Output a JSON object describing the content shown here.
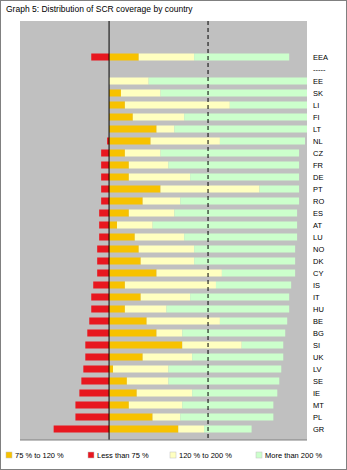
{
  "chart_data": {
    "type": "bar",
    "title": "Graph 5: Distribution of SCR coverage by country",
    "orientation": "horizontal",
    "stacked": true,
    "grid": true,
    "tick_labels": false,
    "legend": "bottom",
    "xlim": [
      -45,
      100
    ],
    "xticks": [
      50
    ],
    "categories": [
      "EEA",
      "-----",
      "EE",
      "SK",
      "LI",
      "FI",
      "LT",
      "NL",
      "CZ",
      "FR",
      "DE",
      "PT",
      "RO",
      "ES",
      "AT",
      "LU",
      "NO",
      "DK",
      "CY",
      "IS",
      "IT",
      "HU",
      "BE",
      "BG",
      "SI",
      "UK",
      "LV",
      "SE",
      "IE",
      "MT",
      "PL",
      "GR"
    ],
    "series": [
      {
        "name": "75 % to 120 %",
        "color": "#f7c200",
        "values": [
          15,
          null,
          0,
          6,
          8,
          12,
          24,
          21,
          8,
          10,
          10,
          26,
          17,
          10,
          4,
          13,
          15,
          16,
          24,
          8,
          16,
          8,
          19,
          24,
          37,
          17,
          2,
          9,
          14,
          10,
          22,
          35
        ]
      },
      {
        "name": "Less than 75 %",
        "color": "#e8171f",
        "values": [
          -9,
          null,
          0,
          0,
          0,
          0,
          0,
          -1,
          -4,
          -4,
          -4,
          -4,
          -4,
          -5,
          -5,
          -5,
          -6,
          -6,
          -6,
          -8,
          -9,
          -9,
          -10,
          -11,
          -12,
          -12,
          -13,
          -14,
          -15,
          -17,
          -17,
          -28
        ]
      },
      {
        "name": "120 % to 200 %",
        "color": "#ffffc0",
        "values": [
          28,
          null,
          20,
          20,
          53,
          26,
          9,
          35,
          18,
          20,
          31,
          50,
          19,
          23,
          18,
          25,
          28,
          27,
          33,
          46,
          25,
          21,
          37,
          13,
          30,
          25,
          28,
          21,
          28,
          27,
          14,
          13
        ]
      },
      {
        "name": "More than 200 %",
        "color": "#ccffcc",
        "values": [
          48,
          null,
          80,
          74,
          39,
          62,
          67,
          43,
          70,
          66,
          55,
          20,
          60,
          62,
          73,
          57,
          51,
          51,
          37,
          38,
          50,
          62,
          34,
          52,
          21,
          46,
          57,
          56,
          43,
          46,
          47,
          24
        ]
      }
    ]
  }
}
